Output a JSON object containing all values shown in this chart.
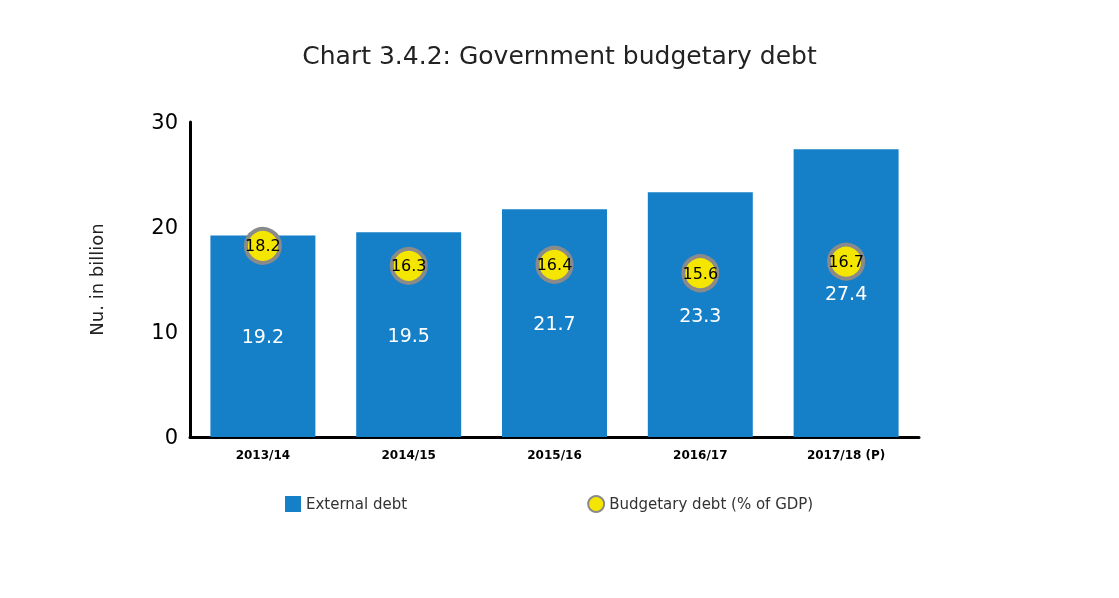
{
  "chart_data": {
    "type": "bar",
    "title": "Chart 3.4.2: Government budgetary debt",
    "ylabel": "Nu. in billion",
    "categories": [
      "2013/14",
      "2014/15",
      "2015/16",
      "2016/17",
      "2017/18 (P)"
    ],
    "series": [
      {
        "name": "External debt",
        "color": "#1580c8",
        "values": [
          19.2,
          19.5,
          21.7,
          23.3,
          27.4
        ]
      },
      {
        "name": "Budgetary debt (% of GDP)",
        "type": "scatter",
        "color": "#f5e600",
        "x": [
          "2013/14",
          "2014/15",
          "2015/16",
          "2016/17",
          "2017/18 (P)"
        ],
        "values": [
          18.2,
          16.3,
          16.4,
          15.6,
          16.7
        ]
      }
    ],
    "ylim": [
      0,
      30
    ],
    "yticks": [
      0,
      10,
      20,
      30
    ],
    "grid": false,
    "legend": "bottom",
    "marker": "circle",
    "data_labels": true
  }
}
